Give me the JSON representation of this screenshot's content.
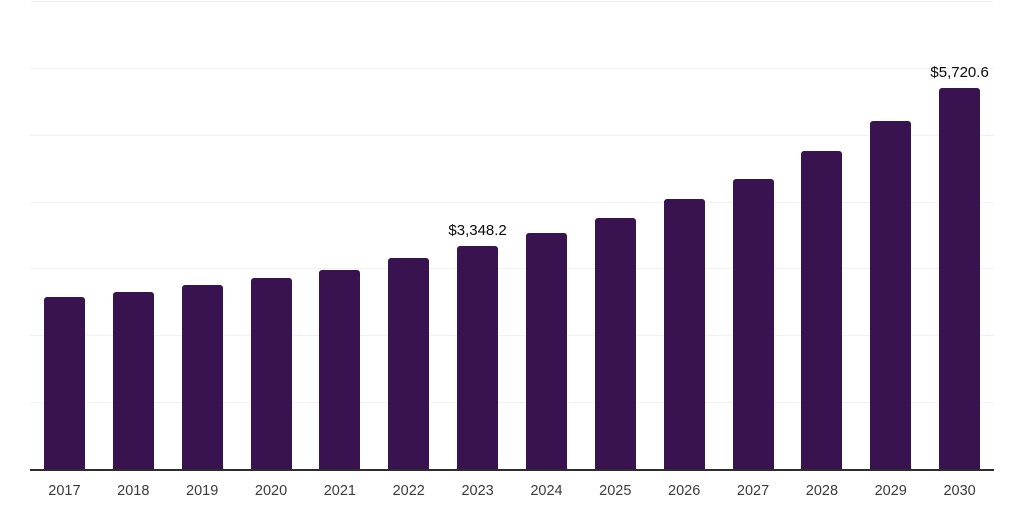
{
  "chart_data": {
    "type": "bar",
    "title": "",
    "xlabel": "",
    "ylabel": "",
    "categories": [
      "2017",
      "2018",
      "2019",
      "2020",
      "2021",
      "2022",
      "2023",
      "2024",
      "2025",
      "2026",
      "2027",
      "2028",
      "2029",
      "2030"
    ],
    "values": [
      2585,
      2670,
      2760,
      2870,
      2995,
      3165,
      3348.2,
      3540,
      3765,
      4055,
      4360,
      4765,
      5225,
      5720.6
    ],
    "data_labels": [
      null,
      null,
      null,
      null,
      null,
      null,
      "$3,348.2",
      null,
      null,
      null,
      null,
      null,
      null,
      "$5,720.6"
    ],
    "labeled_points": [
      {
        "category": "2023",
        "label": "$3,348.2",
        "value": 3348.2
      },
      {
        "category": "2030",
        "label": "$5,720.6",
        "value": 5720.6
      }
    ],
    "ylim": [
      0,
      7000
    ],
    "gridline_step": 1000,
    "grid": true,
    "legend": false,
    "y_tick_labels_shown": false,
    "colors": {
      "bar": "#38134F",
      "axis_line": "#2d2d2d",
      "gridline": "#f1f1f1",
      "data_label_text": "#0a0a0a",
      "tick_label_text": "#3b3b3b",
      "background": "#ffffff"
    }
  }
}
